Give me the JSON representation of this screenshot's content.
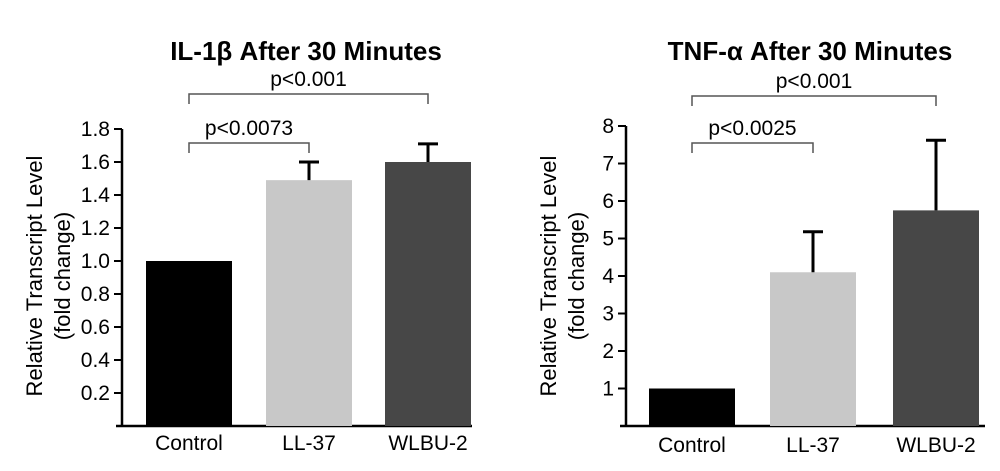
{
  "chart_data": [
    {
      "type": "bar",
      "title": "IL-1β After 30 Minutes",
      "ylabel_line1": "Relative Transcript Level",
      "ylabel_line2": "(fold change)",
      "categories": [
        "Control",
        "LL-37",
        "WLBU-2"
      ],
      "values": [
        1.0,
        1.49,
        1.6
      ],
      "error": [
        0,
        0.11,
        0.11
      ],
      "colors": [
        "#000000",
        "#c8c8c8",
        "#474747"
      ],
      "ylim": [
        0,
        1.8
      ],
      "yticks": [
        "0.2",
        "0.4",
        "0.6",
        "0.8",
        "1.0",
        "1.2",
        "1.4",
        "1.6",
        "1.8"
      ],
      "grid": false,
      "annotations": [
        {
          "text": "p<0.0073",
          "from": 0,
          "to": 1,
          "level": 1
        },
        {
          "text": "p<0.001",
          "from": 0,
          "to": 2,
          "level": 2
        }
      ]
    },
    {
      "type": "bar",
      "title": "TNF-α After 30 Minutes",
      "ylabel_line1": "Relative Transcript Level",
      "ylabel_line2": "(fold change)",
      "categories": [
        "Control",
        "LL-37",
        "WLBU-2"
      ],
      "values": [
        1.0,
        4.1,
        5.75
      ],
      "error": [
        0,
        1.08,
        1.87
      ],
      "colors": [
        "#000000",
        "#c8c8c8",
        "#474747"
      ],
      "ylim": [
        0,
        8
      ],
      "yticks": [
        "1",
        "2",
        "3",
        "4",
        "5",
        "6",
        "7",
        "8"
      ],
      "grid": false,
      "annotations": [
        {
          "text": "p<0.0025",
          "from": 0,
          "to": 1,
          "level": 1
        },
        {
          "text": "p<0.001",
          "from": 0,
          "to": 2,
          "level": 2
        }
      ]
    }
  ]
}
